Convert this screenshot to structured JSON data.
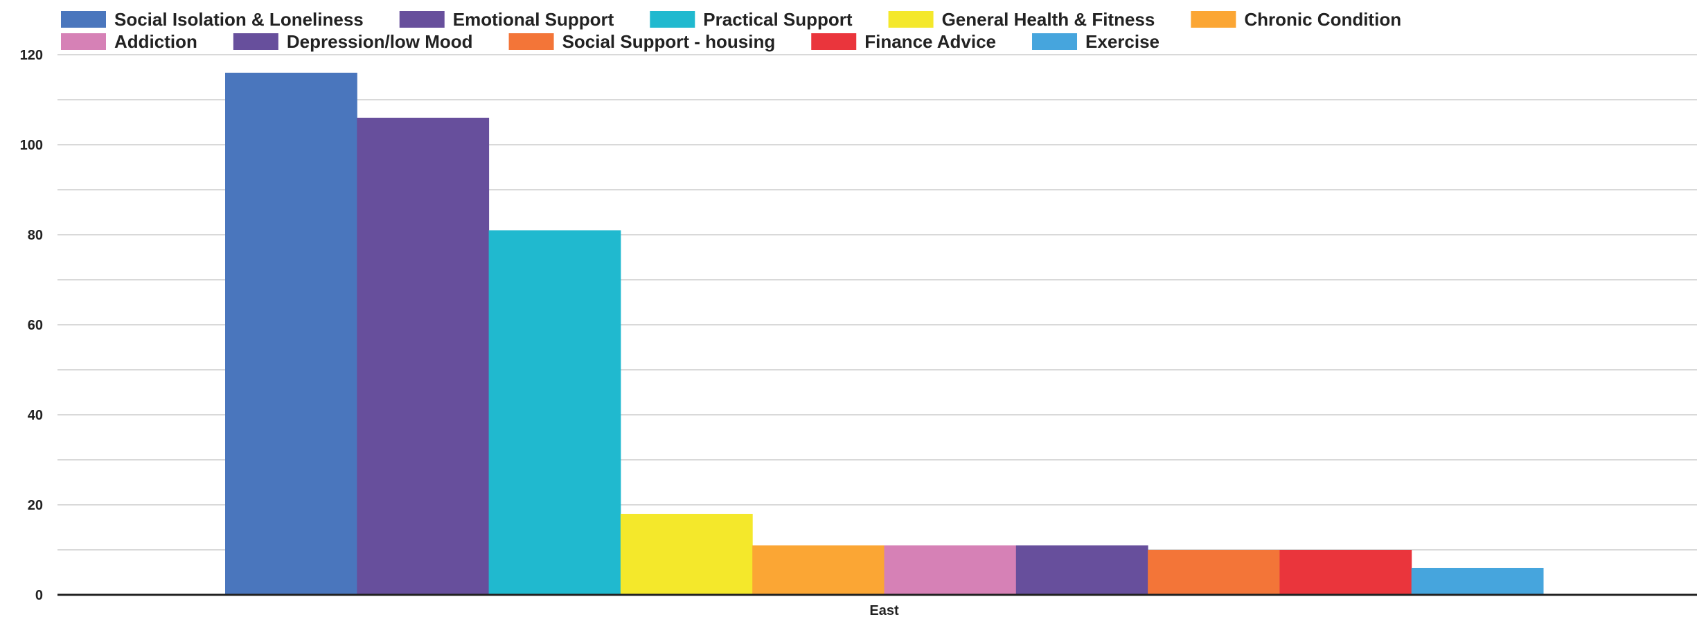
{
  "chart_data": {
    "type": "bar",
    "categories": [
      "East"
    ],
    "series": [
      {
        "name": "Social Isolation & Loneliness",
        "values": [
          116
        ],
        "color": "#4a76bd"
      },
      {
        "name": "Emotional Support",
        "values": [
          106
        ],
        "color": "#674f9c"
      },
      {
        "name": "Practical Support",
        "values": [
          81
        ],
        "color": "#20b9cf"
      },
      {
        "name": "General Health & Fitness",
        "values": [
          18
        ],
        "color": "#f4e82b"
      },
      {
        "name": "Chronic Condition",
        "values": [
          11
        ],
        "color": "#fba634"
      },
      {
        "name": "Addiction",
        "values": [
          11
        ],
        "color": "#d681b6"
      },
      {
        "name": "Depression/low Mood",
        "values": [
          11
        ],
        "color": "#674f9c"
      },
      {
        "name": "Social Support - housing",
        "values": [
          10
        ],
        "color": "#f37538"
      },
      {
        "name": "Finance Advice",
        "values": [
          10
        ],
        "color": "#ea353c"
      },
      {
        "name": "Exercise",
        "values": [
          6
        ],
        "color": "#46a5dd"
      }
    ],
    "y_ticks": [
      0,
      20,
      40,
      60,
      80,
      100,
      120
    ],
    "ylim": [
      0,
      120
    ],
    "grid": true,
    "legend_position": "top"
  }
}
